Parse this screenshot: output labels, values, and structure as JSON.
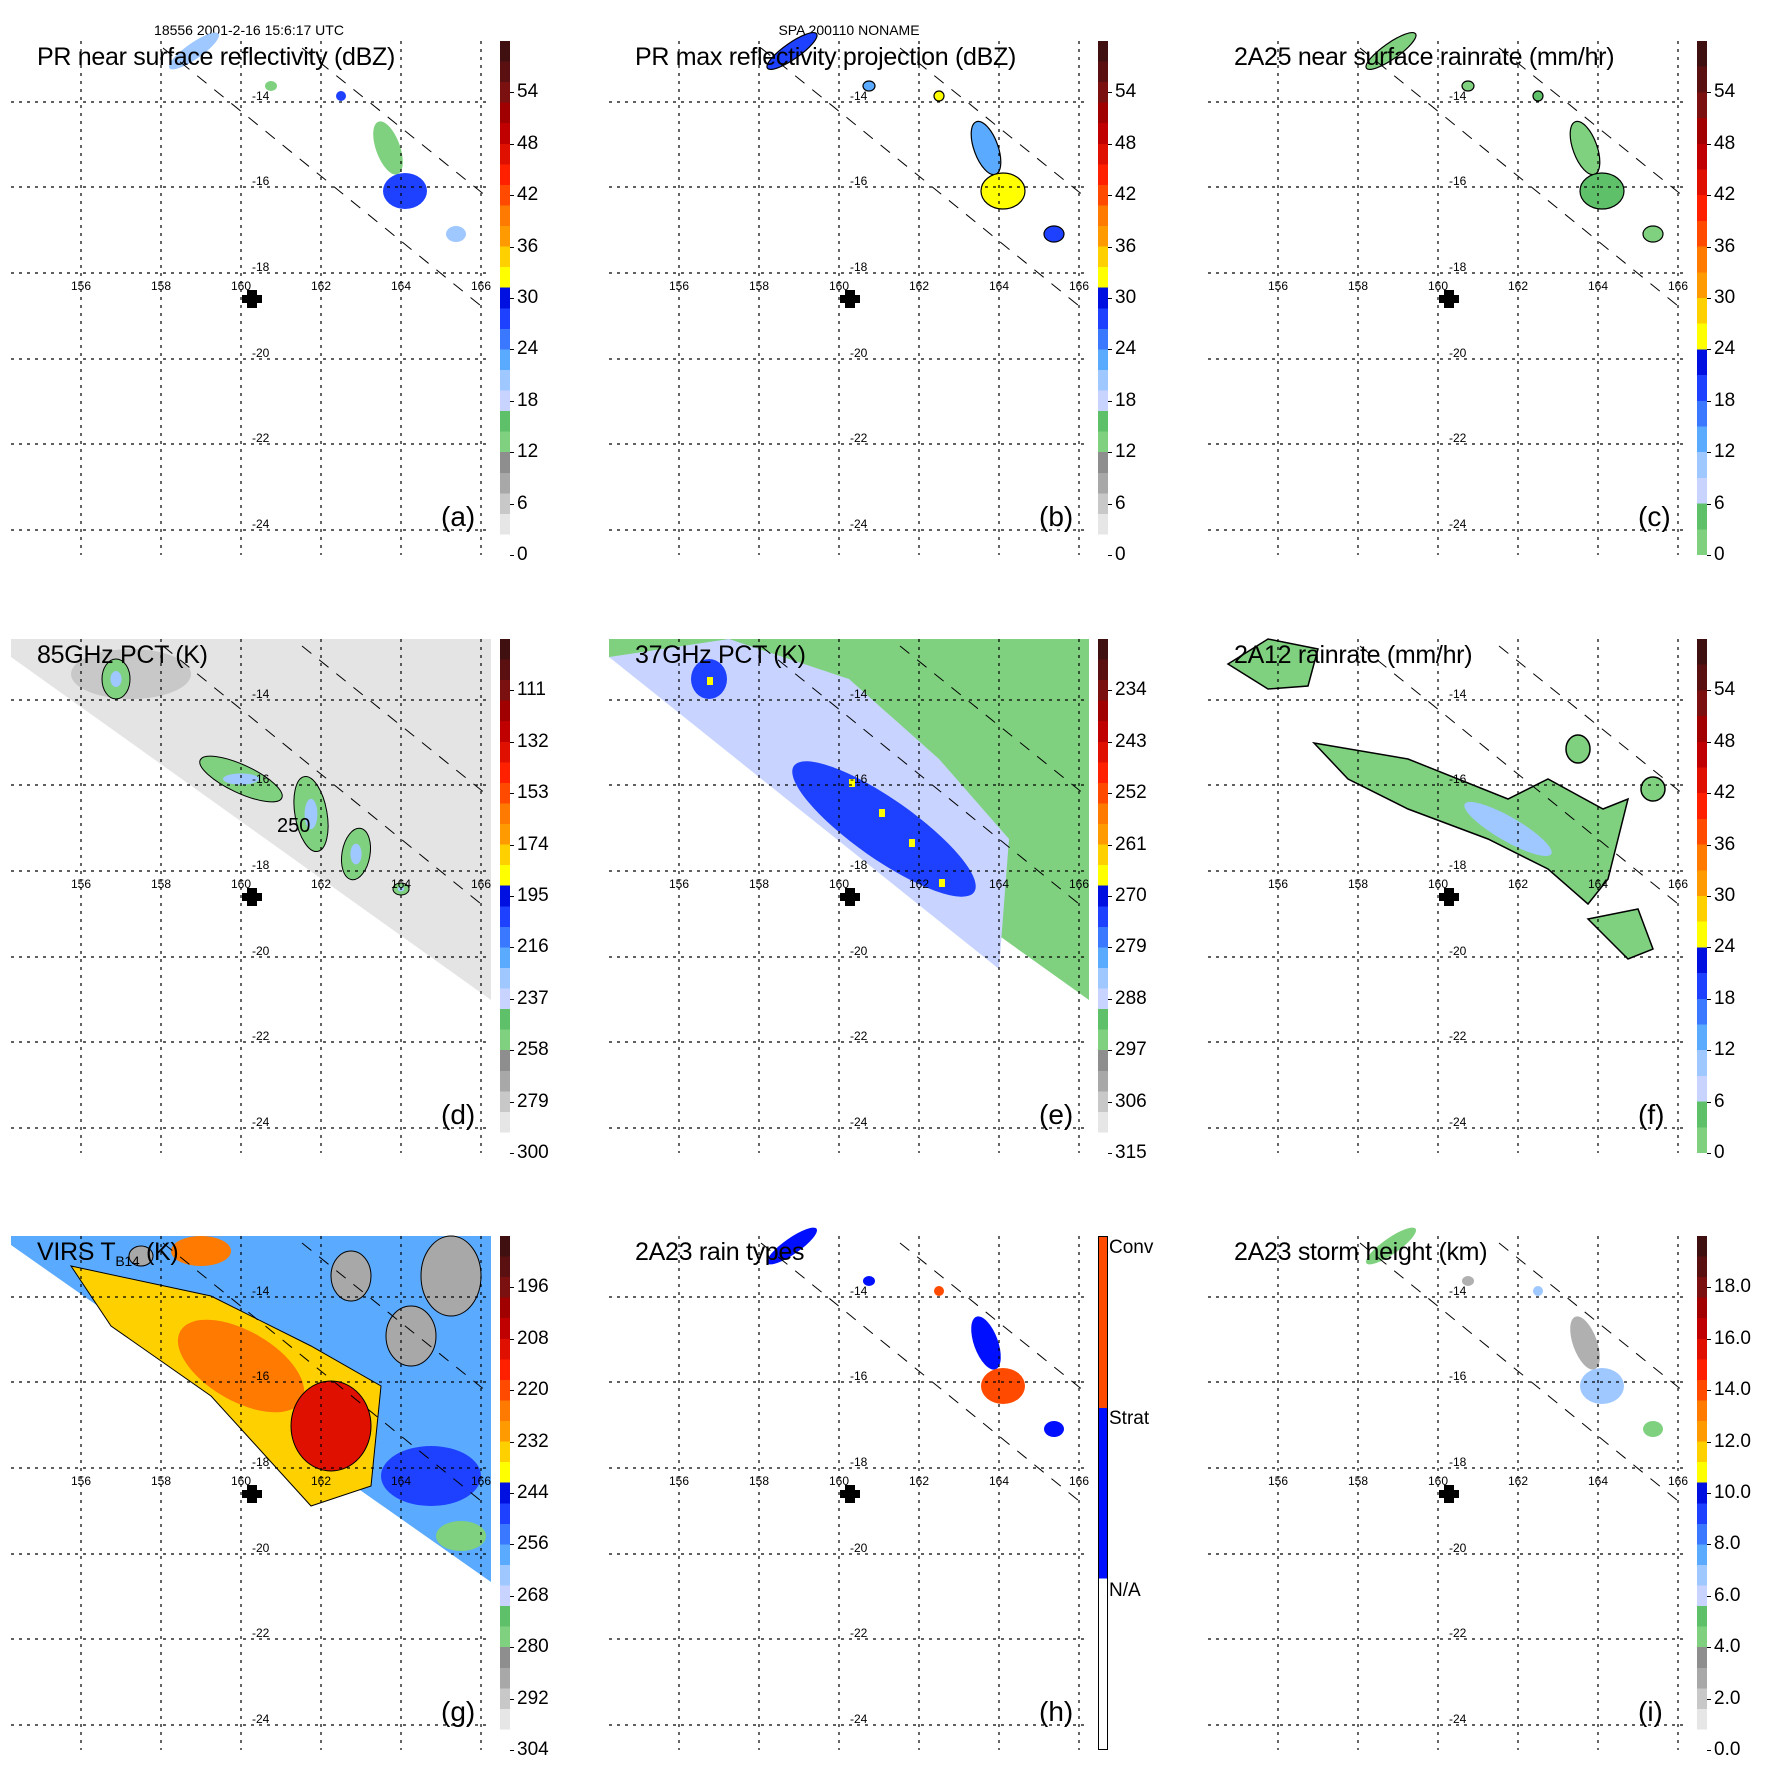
{
  "header": {
    "orbit_time": "18556 2001-2-16 15:6:17 UTC",
    "storm": "SPA 200110 NONAME"
  },
  "map": {
    "lon_labels": [
      "156",
      "158",
      "160",
      "162",
      "164",
      "166"
    ],
    "lat_labels": [
      "-14",
      "-16",
      "-18",
      "-20",
      "-22",
      "-24"
    ],
    "center_marker": "storm-center-cross"
  },
  "palettes": {
    "standard": [
      "#ffffff",
      "#e6e6e6",
      "#c8c8c8",
      "#a8a8a8",
      "#8e8e8e",
      "#7fd17f",
      "#5fc06a",
      "#c8d4ff",
      "#9ec8ff",
      "#5aaaff",
      "#3a78ff",
      "#1e40ff",
      "#0010e0",
      "#ffff00",
      "#ffd000",
      "#ff9a00",
      "#ff7a00",
      "#ff4a00",
      "#ff2000",
      "#e01000",
      "#c00000",
      "#a00000",
      "#7a1010",
      "#5a1010",
      "#401010"
    ],
    "rain": [
      "#7fd17f",
      "#5fc06a",
      "#c8d4ff",
      "#9ec8ff",
      "#5aaaff",
      "#3a78ff",
      "#1e40ff",
      "#0010e0",
      "#ffff00",
      "#ffd000",
      "#ff9a00",
      "#ff7a00",
      "#ff4a00",
      "#ff2000",
      "#e01000",
      "#c00000",
      "#a00000",
      "#7a1010",
      "#5a1010",
      "#401010"
    ],
    "raintype": [
      "#ffffff",
      "#0010ff",
      "#ff4a00"
    ]
  },
  "panels": [
    {
      "id": "a",
      "title": "PR near surface reflectivity (dBZ)",
      "label": "(a)",
      "palette": "standard",
      "ticks": [
        "0",
        "6",
        "12",
        "18",
        "24",
        "30",
        "36",
        "42",
        "48",
        "54"
      ]
    },
    {
      "id": "b",
      "title": "PR max reflectivity projection (dBZ)",
      "label": "(b)",
      "palette": "standard",
      "ticks": [
        "0",
        "6",
        "12",
        "18",
        "24",
        "30",
        "36",
        "42",
        "48",
        "54"
      ]
    },
    {
      "id": "c",
      "title": "2A25 near surface rainrate (mm/hr)",
      "label": "(c)",
      "palette": "rain",
      "ticks": [
        "0",
        "6",
        "12",
        "18",
        "24",
        "30",
        "36",
        "42",
        "48",
        "54"
      ]
    },
    {
      "id": "d",
      "title": "85GHz PCT (K)",
      "label": "(d)",
      "palette": "standard",
      "ticks": [
        "300",
        "279",
        "258",
        "237",
        "216",
        "195",
        "174",
        "153",
        "132",
        "111"
      ],
      "contour_label": "250"
    },
    {
      "id": "e",
      "title": "37GHz PCT (K)",
      "label": "(e)",
      "palette": "standard",
      "ticks": [
        "315",
        "306",
        "297",
        "288",
        "279",
        "270",
        "261",
        "252",
        "243",
        "234"
      ]
    },
    {
      "id": "f",
      "title": "2A12 rainrate (mm/hr)",
      "label": "(f)",
      "palette": "rain",
      "ticks": [
        "0",
        "6",
        "12",
        "18",
        "24",
        "30",
        "36",
        "42",
        "48",
        "54"
      ]
    },
    {
      "id": "g",
      "title": "VIRS T",
      "title_sub": "B14",
      "title_suffix": " (K)",
      "label": "(g)",
      "palette": "standard",
      "ticks": [
        "304",
        "292",
        "280",
        "268",
        "256",
        "244",
        "232",
        "220",
        "208",
        "196"
      ]
    },
    {
      "id": "h",
      "title": "2A23 rain types",
      "label": "(h)",
      "palette": "raintype",
      "categories": [
        "N/A",
        "Strat",
        "Conv"
      ]
    },
    {
      "id": "i",
      "title": "2A23 storm height (km)",
      "label": "(i)",
      "palette": "standard",
      "ticks": [
        "0.0",
        "2.0",
        "4.0",
        "6.0",
        "8.0",
        "10.0",
        "12.0",
        "14.0",
        "16.0",
        "18.0"
      ]
    }
  ]
}
